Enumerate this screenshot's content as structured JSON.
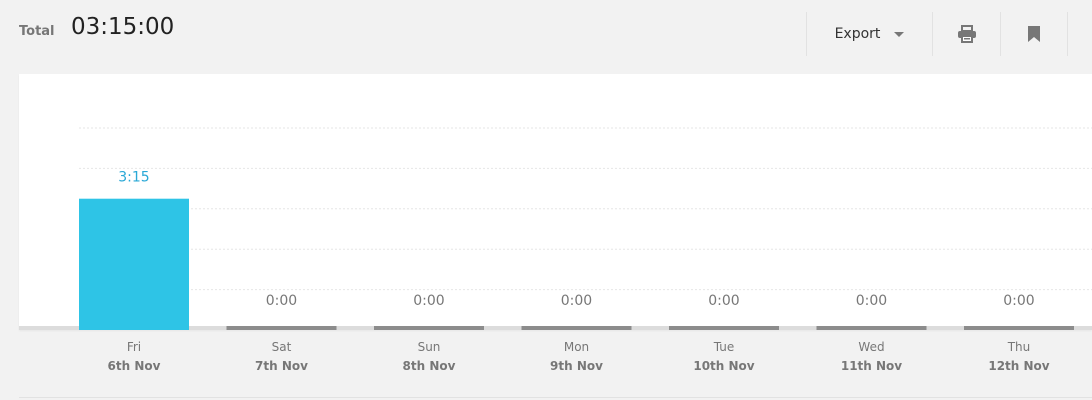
{
  "header": {
    "total_label": "Total",
    "total_value": "03:15:00"
  },
  "toolbar": {
    "export_label": "Export",
    "print_icon": "printer-icon",
    "bookmark_icon": "bookmark-icon"
  },
  "colors": {
    "bar_active": "#2ec4e6",
    "bar_zero": "#8c8c8c",
    "label_active": "#2aa8d6",
    "label_zero": "#777777",
    "axis_text": "#777777",
    "gridline": "#e6e6e6"
  },
  "chart_data": {
    "type": "bar",
    "categories": [
      "Fri",
      "Sat",
      "Sun",
      "Mon",
      "Tue",
      "Wed",
      "Thu"
    ],
    "category_dates": [
      "6th Nov",
      "7th Nov",
      "8th Nov",
      "9th Nov",
      "10th Nov",
      "11th Nov",
      "12th Nov"
    ],
    "values_minutes": [
      195,
      0,
      0,
      0,
      0,
      0,
      0
    ],
    "data_labels": [
      "3:15",
      "0:00",
      "0:00",
      "0:00",
      "0:00",
      "0:00",
      "0:00"
    ],
    "title": "",
    "xlabel": "",
    "ylabel": "",
    "ylim_minutes": [
      0,
      300
    ],
    "grid": true,
    "legend": "none"
  }
}
